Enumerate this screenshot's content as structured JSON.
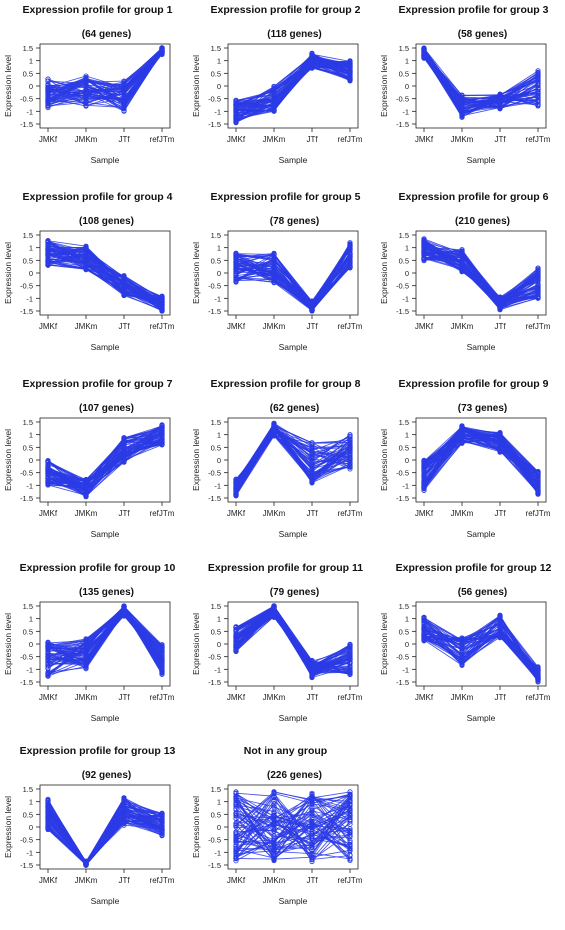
{
  "figure": {
    "line_color": "#2b3be5",
    "axis_color": "#222222",
    "sample_order": [
      "JMKf",
      "JMKm",
      "JTf",
      "refJTm"
    ]
  },
  "chart_data": [
    {
      "type": "line",
      "title": "Expression profile for group 1",
      "subtitle": "(64 genes)",
      "xlabel": "Sample",
      "ylabel": "Expression level",
      "categories": [
        "JMKf",
        "JMKm",
        "JTf",
        "refJTm"
      ],
      "ylim": [
        -1.5,
        1.5
      ],
      "yticks": [
        "1.5",
        "1",
        "0.5",
        "0",
        "-0.5",
        "-1",
        "-1.5"
      ],
      "n_genes": 64,
      "median_profile": [
        -0.3,
        -0.2,
        -0.4,
        1.4
      ],
      "spread": [
        0.6,
        0.6,
        0.6,
        0.15
      ]
    },
    {
      "type": "line",
      "title": "Expression profile for group 2",
      "subtitle": "(118 genes)",
      "xlabel": "Sample",
      "ylabel": "Expression level",
      "categories": [
        "JMKf",
        "JMKm",
        "JTf",
        "refJTm"
      ],
      "ylim": [
        -1.5,
        1.5
      ],
      "yticks": [
        "1.5",
        "1",
        "0.5",
        "0",
        "-0.5",
        "-1",
        "-1.5"
      ],
      "n_genes": 118,
      "median_profile": [
        -1.0,
        -0.5,
        1.0,
        0.6
      ],
      "spread": [
        0.45,
        0.5,
        0.3,
        0.4
      ]
    },
    {
      "type": "line",
      "title": "Expression profile for group 3",
      "subtitle": "(58 genes)",
      "xlabel": "Sample",
      "ylabel": "Expression level",
      "categories": [
        "JMKf",
        "JMKm",
        "JTf",
        "refJTm"
      ],
      "ylim": [
        -1.5,
        1.5
      ],
      "yticks": [
        "1.5",
        "1",
        "0.5",
        "0",
        "-0.5",
        "-1",
        "-1.5"
      ],
      "n_genes": 58,
      "median_profile": [
        1.3,
        -0.8,
        -0.6,
        -0.1
      ],
      "spread": [
        0.2,
        0.45,
        0.3,
        0.7
      ]
    },
    {
      "type": "line",
      "title": "Expression profile for group 4",
      "subtitle": "(108 genes)",
      "xlabel": "Sample",
      "ylabel": "Expression level",
      "categories": [
        "JMKf",
        "JMKm",
        "JTf",
        "refJTm"
      ],
      "ylim": [
        -1.5,
        1.5
      ],
      "yticks": [
        "1.5",
        "1",
        "0.5",
        "0",
        "-0.5",
        "-1",
        "-1.5"
      ],
      "n_genes": 108,
      "median_profile": [
        0.8,
        0.6,
        -0.5,
        -1.2
      ],
      "spread": [
        0.5,
        0.5,
        0.4,
        0.3
      ]
    },
    {
      "type": "line",
      "title": "Expression profile for group 5",
      "subtitle": "(78 genes)",
      "xlabel": "Sample",
      "ylabel": "Expression level",
      "categories": [
        "JMKf",
        "JMKm",
        "JTf",
        "refJTm"
      ],
      "ylim": [
        -1.5,
        1.5
      ],
      "yticks": [
        "1.5",
        "1",
        "0.5",
        "0",
        "-0.5",
        "-1",
        "-1.5"
      ],
      "n_genes": 78,
      "median_profile": [
        0.2,
        0.2,
        -1.3,
        0.7
      ],
      "spread": [
        0.6,
        0.6,
        0.2,
        0.5
      ]
    },
    {
      "type": "line",
      "title": "Expression profile for group 6",
      "subtitle": "(210 genes)",
      "xlabel": "Sample",
      "ylabel": "Expression level",
      "categories": [
        "JMKf",
        "JMKm",
        "JTf",
        "refJTm"
      ],
      "ylim": [
        -1.5,
        1.5
      ],
      "yticks": [
        "1.5",
        "1",
        "0.5",
        "0",
        "-0.5",
        "-1",
        "-1.5"
      ],
      "n_genes": 210,
      "median_profile": [
        0.9,
        0.5,
        -1.2,
        -0.4
      ],
      "spread": [
        0.45,
        0.45,
        0.25,
        0.6
      ]
    },
    {
      "type": "line",
      "title": "Expression profile for group 7",
      "subtitle": "(107 genes)",
      "xlabel": "Sample",
      "ylabel": "Expression level",
      "categories": [
        "JMKf",
        "JMKm",
        "JTf",
        "refJTm"
      ],
      "ylim": [
        -1.5,
        1.5
      ],
      "yticks": [
        "1.5",
        "1",
        "0.5",
        "0",
        "-0.5",
        "-1",
        "-1.5"
      ],
      "n_genes": 107,
      "median_profile": [
        -0.5,
        -1.1,
        0.4,
        1.0
      ],
      "spread": [
        0.5,
        0.35,
        0.5,
        0.4
      ]
    },
    {
      "type": "line",
      "title": "Expression profile for group 8",
      "subtitle": "(62 genes)",
      "xlabel": "Sample",
      "ylabel": "Expression level",
      "categories": [
        "JMKf",
        "JMKm",
        "JTf",
        "refJTm"
      ],
      "ylim": [
        -1.5,
        1.5
      ],
      "yticks": [
        "1.5",
        "1",
        "0.5",
        "0",
        "-0.5",
        "-1",
        "-1.5"
      ],
      "n_genes": 62,
      "median_profile": [
        -1.1,
        1.2,
        -0.1,
        0.3
      ],
      "spread": [
        0.35,
        0.25,
        0.8,
        0.7
      ]
    },
    {
      "type": "line",
      "title": "Expression profile for group 9",
      "subtitle": "(73 genes)",
      "xlabel": "Sample",
      "ylabel": "Expression level",
      "categories": [
        "JMKf",
        "JMKm",
        "JTf",
        "refJTm"
      ],
      "ylim": [
        -1.5,
        1.5
      ],
      "yticks": [
        "1.5",
        "1",
        "0.5",
        "0",
        "-0.5",
        "-1",
        "-1.5"
      ],
      "n_genes": 73,
      "median_profile": [
        -0.6,
        1.0,
        0.7,
        -0.9
      ],
      "spread": [
        0.6,
        0.35,
        0.4,
        0.45
      ]
    },
    {
      "type": "line",
      "title": "Expression profile for group 10",
      "subtitle": "(135 genes)",
      "xlabel": "Sample",
      "ylabel": "Expression level",
      "categories": [
        "JMKf",
        "JMKm",
        "JTf",
        "refJTm"
      ],
      "ylim": [
        -1.5,
        1.5
      ],
      "yticks": [
        "1.5",
        "1",
        "0.5",
        "0",
        "-0.5",
        "-1",
        "-1.5"
      ],
      "n_genes": 135,
      "median_profile": [
        -0.6,
        -0.4,
        1.3,
        -0.6
      ],
      "spread": [
        0.7,
        0.65,
        0.2,
        0.6
      ]
    },
    {
      "type": "line",
      "title": "Expression profile for group 11",
      "subtitle": "(79 genes)",
      "xlabel": "Sample",
      "ylabel": "Expression level",
      "categories": [
        "JMKf",
        "JMKm",
        "JTf",
        "refJTm"
      ],
      "ylim": [
        -1.5,
        1.5
      ],
      "yticks": [
        "1.5",
        "1",
        "0.5",
        "0",
        "-0.5",
        "-1",
        "-1.5"
      ],
      "n_genes": 79,
      "median_profile": [
        0.2,
        1.3,
        -1.0,
        -0.6
      ],
      "spread": [
        0.5,
        0.25,
        0.35,
        0.6
      ]
    },
    {
      "type": "line",
      "title": "Expression profile for group 12",
      "subtitle": "(56 genes)",
      "xlabel": "Sample",
      "ylabel": "Expression level",
      "categories": [
        "JMKf",
        "JMKm",
        "JTf",
        "refJTm"
      ],
      "ylim": [
        -1.5,
        1.5
      ],
      "yticks": [
        "1.5",
        "1",
        "0.5",
        "0",
        "-0.5",
        "-1",
        "-1.5"
      ],
      "n_genes": 56,
      "median_profile": [
        0.6,
        -0.3,
        0.7,
        -1.2
      ],
      "spread": [
        0.5,
        0.55,
        0.45,
        0.3
      ]
    },
    {
      "type": "line",
      "title": "Expression profile for group 13",
      "subtitle": "(92 genes)",
      "xlabel": "Sample",
      "ylabel": "Expression level",
      "categories": [
        "JMKf",
        "JMKm",
        "JTf",
        "refJTm"
      ],
      "ylim": [
        -1.5,
        1.5
      ],
      "yticks": [
        "1.5",
        "1",
        "0.5",
        "0",
        "-0.5",
        "-1",
        "-1.5"
      ],
      "n_genes": 92,
      "median_profile": [
        0.5,
        -1.45,
        0.6,
        0.1
      ],
      "spread": [
        0.6,
        0.1,
        0.55,
        0.45
      ]
    },
    {
      "type": "line",
      "title": "Not in any group",
      "subtitle": "(226 genes)",
      "xlabel": "Sample",
      "ylabel": "Expression level",
      "categories": [
        "JMKf",
        "JMKm",
        "JTf",
        "refJTm"
      ],
      "ylim": [
        -1.5,
        1.5
      ],
      "yticks": [
        "1.5",
        "1",
        "0.5",
        "0",
        "-0.5",
        "-1",
        "-1.5"
      ],
      "n_genes": 226,
      "median_profile": [
        0.0,
        0.0,
        0.0,
        0.0
      ],
      "spread": [
        1.4,
        1.4,
        1.4,
        1.4
      ]
    }
  ]
}
